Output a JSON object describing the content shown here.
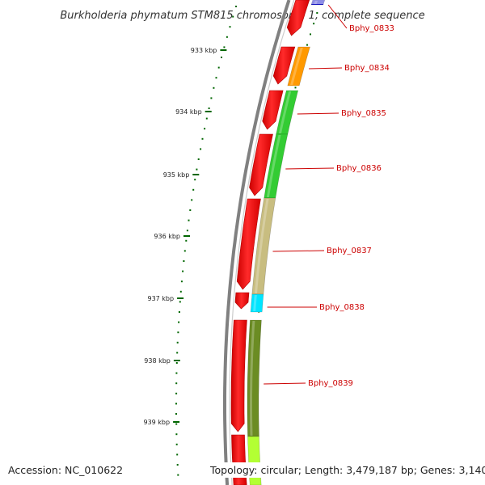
{
  "title": "Burkholderia phymatum STM815 chromosome 1, complete sequence",
  "accession": "Accession: NC_010622",
  "summary": "Topology: circular; Length: 3,479,187 bp; Genes: 3,140",
  "colors": {
    "backbone": "#808080",
    "cds_forward": "#ff0000",
    "tick": "#006600",
    "label": "#cc0000"
  },
  "ticks": [
    {
      "label": "933 kbp"
    },
    {
      "label": "934 kbp"
    },
    {
      "label": "935 kbp"
    },
    {
      "label": "936 kbp"
    },
    {
      "label": "937 kbp"
    },
    {
      "label": "938 kbp"
    },
    {
      "label": "939 kbp"
    }
  ],
  "genes": [
    {
      "name": "Bphy_0833",
      "color": "#1a1acc"
    },
    {
      "name": "Bphy_0834",
      "color": "#ff9900"
    },
    {
      "name": "Bphy_0835",
      "color": "#33cc33"
    },
    {
      "name": "Bphy_0836",
      "color": "#33cc33"
    },
    {
      "name": "Bphy_0837",
      "color": "#c8bd80"
    },
    {
      "name": "Bphy_0838",
      "color": "#00e5ff"
    },
    {
      "name": "Bphy_0839",
      "color": "#6b8c23"
    }
  ]
}
